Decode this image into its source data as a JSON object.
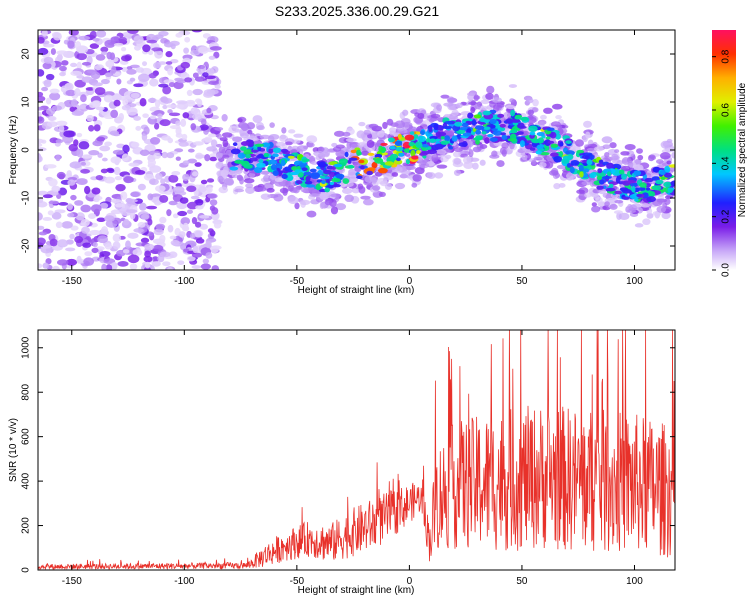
{
  "title": "S233.2025.336.00.29.G21",
  "chart_data": [
    {
      "type": "heatmap",
      "xlabel": "Height of straight line (km)",
      "ylabel": "Frequency (Hz)",
      "xlim": [
        -165,
        118
      ],
      "ylim": [
        -25,
        25
      ],
      "xticks": [
        -150,
        -100,
        -50,
        0,
        50,
        100
      ],
      "yticks": [
        -20,
        -10,
        0,
        10,
        20
      ],
      "ridge": {
        "x": [
          -85,
          -75,
          -60,
          -45,
          -35,
          -25,
          -15,
          -5,
          5,
          15,
          25,
          35,
          45,
          55,
          65,
          75,
          85,
          95,
          105,
          115
        ],
        "freq": [
          -1,
          -1,
          -2,
          -5,
          -6,
          -3,
          -2,
          0,
          1,
          3,
          4,
          5,
          5,
          3,
          1,
          -2,
          -5,
          -7,
          -8,
          -6
        ]
      },
      "colorbar": {
        "label": "Normalized spectral amplitude",
        "range": [
          0,
          0.9
        ],
        "ticks": [
          "0.0",
          "0.2",
          "0.4",
          "0.6",
          "0.8"
        ]
      }
    },
    {
      "type": "line",
      "xlabel": "Height of straight line (km)",
      "ylabel": "SNR (10 * v/v)",
      "xlim": [
        -165,
        118
      ],
      "ylim": [
        0,
        1080
      ],
      "xticks": [
        -150,
        -100,
        -50,
        0,
        50,
        100
      ],
      "yticks": [
        0,
        200,
        400,
        600,
        800,
        1000
      ],
      "color": "#e8312a",
      "envelope": {
        "x": [
          -165,
          -100,
          -72,
          -65,
          -55,
          -45,
          -35,
          -25,
          -15,
          -8,
          0,
          5,
          9,
          12,
          20,
          40,
          60,
          80,
          100,
          118
        ],
        "mean": [
          15,
          18,
          20,
          60,
          110,
          140,
          120,
          170,
          210,
          250,
          300,
          330,
          130,
          320,
          380,
          400,
          420,
          400,
          390,
          350
        ],
        "amp": [
          12,
          14,
          15,
          50,
          70,
          80,
          90,
          110,
          120,
          110,
          90,
          70,
          100,
          240,
          290,
          320,
          330,
          330,
          320,
          300
        ]
      }
    }
  ]
}
